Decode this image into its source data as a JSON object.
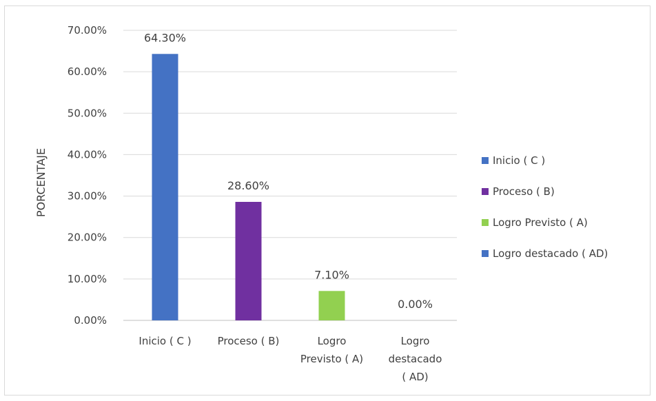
{
  "chart_data": {
    "type": "bar",
    "title": "",
    "xlabel": "",
    "ylabel": "PORCENTAJE",
    "ylim": [
      0,
      70
    ],
    "yticks": [
      "0.00%",
      "10.00%",
      "20.00%",
      "30.00%",
      "40.00%",
      "50.00%",
      "60.00%",
      "70.00%"
    ],
    "categories": [
      [
        "Inicio  ( C )"
      ],
      [
        "Proceso ( B)"
      ],
      [
        "Logro",
        "Previsto ( A)"
      ],
      [
        "Logro",
        "destacado",
        "( AD)"
      ]
    ],
    "values": [
      64.3,
      28.6,
      7.1,
      0.0
    ],
    "data_labels": [
      "64.30%",
      "28.60%",
      "7.10%",
      "0.00%"
    ],
    "colors": [
      "#4472C4",
      "#7030A0",
      "#92D050",
      "#4472C4"
    ],
    "legend": {
      "position": "right",
      "entries": [
        "Inicio  ( C )",
        "Proceso ( B)",
        "Logro Previsto ( A)",
        "Logro destacado ( AD)"
      ]
    },
    "grid": true
  }
}
